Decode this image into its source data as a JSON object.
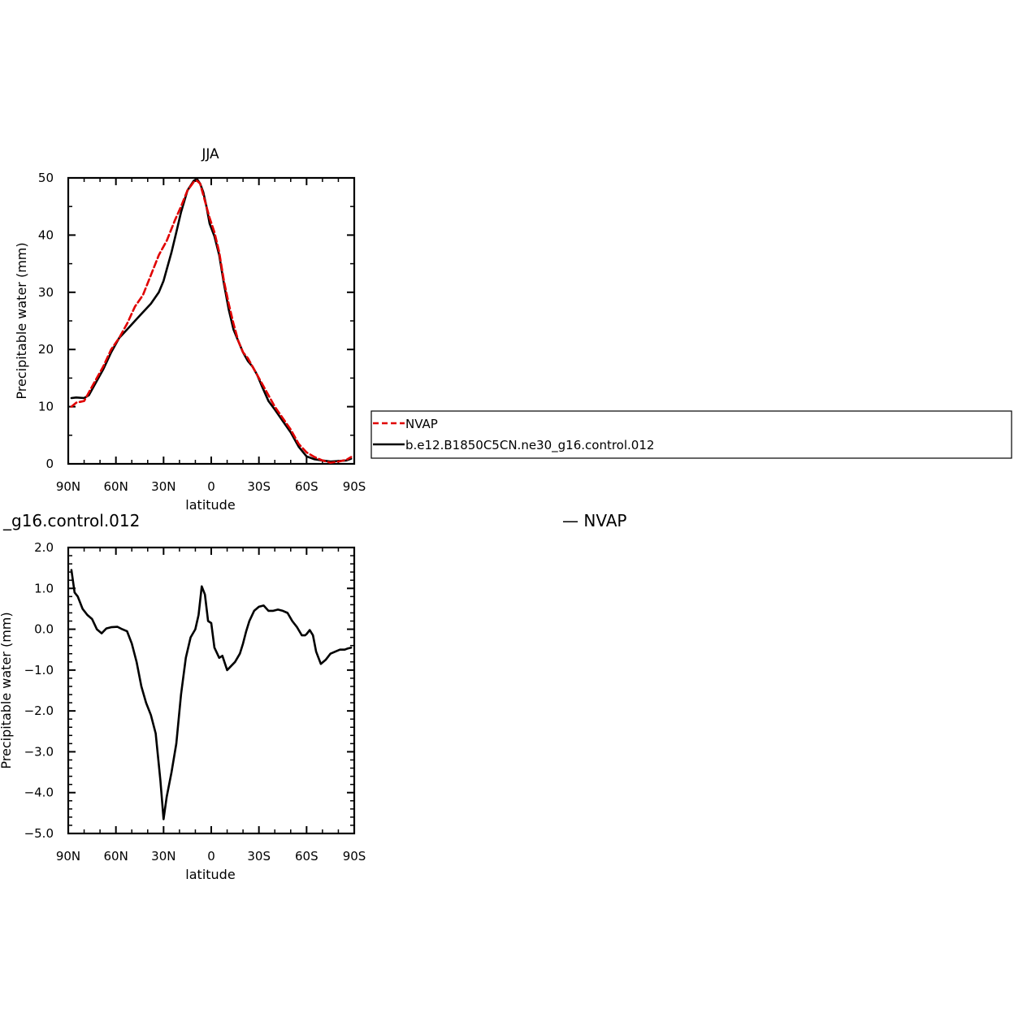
{
  "chart_data": [
    {
      "type": "line",
      "title": "JJA",
      "xlabel": "latitude",
      "ylabel": "Precipitable water (mm)",
      "ylim": [
        0,
        50
      ],
      "yticks": [
        "0",
        "10",
        "20",
        "30",
        "40",
        "50"
      ],
      "xlim": [
        90,
        -90
      ],
      "xticks": [
        "90N",
        "60N",
        "30N",
        "0",
        "30S",
        "60S",
        "90S"
      ],
      "series": [
        {
          "name": "NVAP",
          "color": "#e00000",
          "dashed": true,
          "x": [
            88,
            85,
            80,
            77,
            73,
            68,
            63,
            58,
            53,
            48,
            43,
            38,
            33,
            28,
            23,
            19,
            15,
            11,
            9,
            7,
            5,
            3,
            1,
            -2,
            -5,
            -8,
            -11,
            -14,
            -17,
            -20,
            -23,
            -26,
            -29,
            -32,
            -36,
            -40,
            -45,
            -50,
            -55,
            -60,
            -65,
            -70,
            -75,
            -80,
            -85,
            -88
          ],
          "y": [
            10.0,
            10.7,
            11.0,
            12.5,
            14.5,
            17.0,
            20.0,
            22.0,
            24.5,
            27.5,
            29.5,
            33.0,
            36.5,
            39.0,
            42.5,
            45.0,
            47.8,
            49.3,
            49.5,
            49.0,
            47.0,
            45.0,
            43.0,
            40.5,
            37.0,
            32.0,
            28.0,
            24.5,
            21.5,
            19.5,
            18.5,
            17.0,
            15.5,
            14.0,
            12.0,
            10.0,
            8.0,
            6.0,
            3.5,
            2.0,
            1.2,
            0.6,
            0.2,
            0.4,
            0.7,
            1.2
          ]
        },
        {
          "name": "b.e12.B1850C5CN.ne30_g16.control.012",
          "color": "#000000",
          "dashed": false,
          "x": [
            88,
            85,
            80,
            77,
            73,
            68,
            63,
            58,
            53,
            48,
            43,
            38,
            33,
            30,
            28,
            25,
            22,
            19,
            15,
            11,
            9,
            7,
            5,
            3,
            1,
            -2,
            -5,
            -8,
            -11,
            -14,
            -17,
            -20,
            -23,
            -26,
            -29,
            -32,
            -36,
            -40,
            -45,
            -50,
            -55,
            -60,
            -65,
            -70,
            -75,
            -80,
            -85,
            -88
          ],
          "y": [
            11.5,
            11.6,
            11.5,
            12.0,
            14.0,
            16.5,
            19.5,
            22.0,
            23.5,
            25.0,
            26.5,
            28.0,
            30.0,
            32.0,
            34.0,
            37.0,
            40.5,
            44.0,
            47.8,
            49.5,
            49.8,
            49.0,
            47.5,
            45.0,
            42.0,
            39.8,
            36.5,
            31.5,
            27.0,
            23.5,
            21.5,
            19.5,
            18.0,
            17.0,
            15.5,
            13.5,
            11.0,
            9.5,
            7.5,
            5.5,
            3.0,
            1.3,
            0.8,
            0.6,
            0.4,
            0.5,
            0.6,
            0.9
          ]
        }
      ],
      "legend": {
        "placement": "right",
        "entries": [
          "NVAP",
          "b.e12.B1850C5CN.ne30_g16.control.012"
        ]
      }
    },
    {
      "type": "line",
      "title_left": "_g16.control.012",
      "title_right": "—  NVAP",
      "xlabel": "latitude",
      "ylabel": "Precipitable water (mm)",
      "ylim": [
        -5,
        2
      ],
      "yticks": [
        "−5.0",
        "−4.0",
        "−3.0",
        "−2.0",
        "−1.0",
        "0.0",
        "1.0",
        "2.0"
      ],
      "xlim": [
        90,
        -90
      ],
      "xticks": [
        "90N",
        "60N",
        "30N",
        "0",
        "30S",
        "60S",
        "90S"
      ],
      "series": [
        {
          "color": "#000000",
          "x": [
            88,
            86,
            84,
            81,
            78,
            75,
            72,
            69,
            66,
            63,
            59,
            56,
            53,
            50,
            47,
            44,
            41,
            38,
            35,
            32,
            30,
            28,
            25,
            22,
            19,
            16,
            13,
            10,
            8,
            6,
            4,
            2,
            0,
            -2,
            -5,
            -7,
            -10,
            -12,
            -15,
            -18,
            -20,
            -22,
            -24,
            -27,
            -30,
            -33,
            -36,
            -39,
            -42,
            -45,
            -48,
            -51,
            -54,
            -57,
            -59,
            -60,
            -62,
            -64,
            -66,
            -69,
            -72,
            -75,
            -78,
            -81,
            -84,
            -86,
            -88
          ],
          "y": [
            1.45,
            0.9,
            0.8,
            0.5,
            0.35,
            0.25,
            0.0,
            -0.1,
            0.02,
            0.05,
            0.06,
            0.0,
            -0.05,
            -0.35,
            -0.8,
            -1.4,
            -1.8,
            -2.1,
            -2.55,
            -3.7,
            -4.65,
            -4.1,
            -3.5,
            -2.8,
            -1.6,
            -0.7,
            -0.2,
            0.0,
            0.35,
            1.05,
            0.85,
            0.2,
            0.15,
            -0.45,
            -0.7,
            -0.65,
            -1.0,
            -0.92,
            -0.8,
            -0.6,
            -0.35,
            -0.05,
            0.2,
            0.45,
            0.55,
            0.58,
            0.45,
            0.45,
            0.48,
            0.45,
            0.4,
            0.2,
            0.05,
            -0.15,
            -0.15,
            -0.12,
            -0.02,
            -0.15,
            -0.55,
            -0.85,
            -0.75,
            -0.6,
            -0.55,
            -0.5,
            -0.5,
            -0.47,
            -0.45
          ]
        }
      ]
    }
  ]
}
